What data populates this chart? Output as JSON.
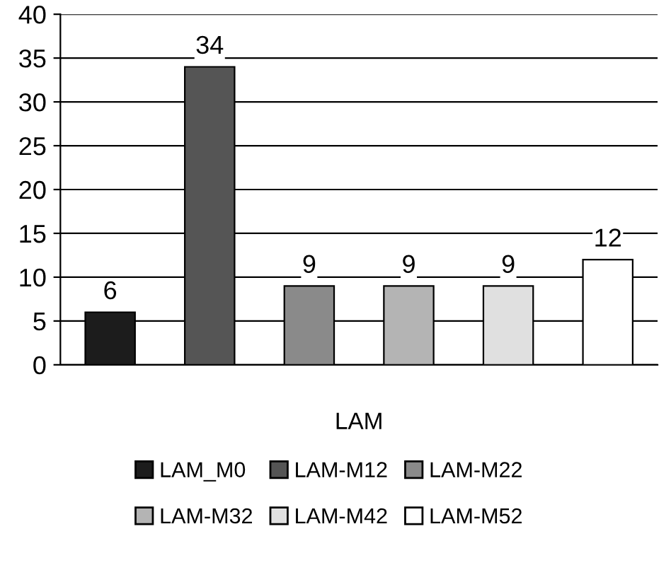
{
  "chart_data": {
    "type": "bar",
    "categories": [
      "LAM"
    ],
    "series": [
      {
        "name": "LAM_M0",
        "color": "#1c1c1c",
        "values": [
          6
        ]
      },
      {
        "name": "LAM-M12",
        "color": "#555555",
        "values": [
          34
        ]
      },
      {
        "name": "LAM-M22",
        "color": "#8a8a8a",
        "values": [
          9
        ]
      },
      {
        "name": "LAM-M32",
        "color": "#b4b4b4",
        "values": [
          9
        ]
      },
      {
        "name": "LAM-M42",
        "color": "#e0e0e0",
        "values": [
          9
        ]
      },
      {
        "name": "LAM-M52",
        "color": "#ffffff",
        "values": [
          12
        ]
      }
    ],
    "ylim": [
      0,
      40
    ],
    "yticks": [
      0,
      5,
      10,
      15,
      20,
      25,
      30,
      35,
      40
    ],
    "grid": "y",
    "legend": "bottom",
    "data_labels": true
  }
}
